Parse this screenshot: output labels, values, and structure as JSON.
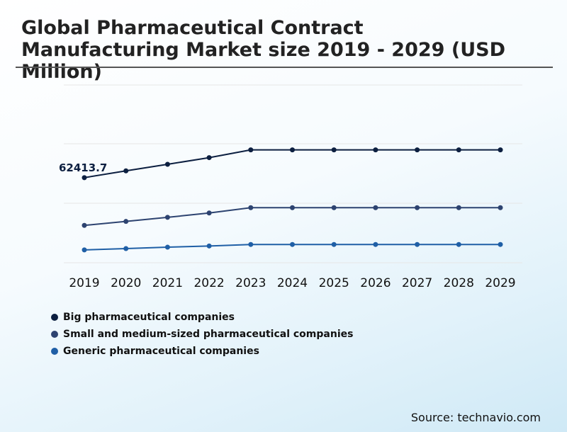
{
  "header": {
    "title": "Global Pharmaceutical Contract Manufacturing Market size 2019 - 2029 (USD Million)"
  },
  "source": {
    "text": "Source: technavio.com"
  },
  "chart_data": {
    "type": "line",
    "title": "Global Pharmaceutical Contract Manufacturing Market size 2019 - 2029 (USD Million)",
    "xlabel": "",
    "ylabel": "",
    "categories": [
      "2019",
      "2020",
      "2021",
      "2022",
      "2023",
      "2024",
      "2025",
      "2026",
      "2027",
      "2028",
      "2029"
    ],
    "ylim": [
      0,
      120000
    ],
    "grid": true,
    "legend_position": "bottom-left",
    "series": [
      {
        "name": "Big pharmaceutical companies",
        "color": "#0c1f40",
        "values": [
          62413.7,
          67400,
          72200,
          77100,
          82800,
          82800,
          82800,
          82800,
          82800,
          82800,
          82800
        ]
      },
      {
        "name": "Small and medium-sized pharmaceutical companies",
        "color": "#2d4370",
        "values": [
          27400,
          30300,
          33300,
          36500,
          40400,
          40400,
          40400,
          40400,
          40400,
          40400,
          40400
        ]
      },
      {
        "name": "Generic pharmaceutical companies",
        "color": "#1f5fa6",
        "values": [
          9400,
          10400,
          11400,
          12300,
          13400,
          13400,
          13400,
          13400,
          13400,
          13400,
          13400
        ]
      }
    ],
    "annotations": [
      {
        "series": 0,
        "category": "2019",
        "text": "62413.7"
      }
    ]
  }
}
